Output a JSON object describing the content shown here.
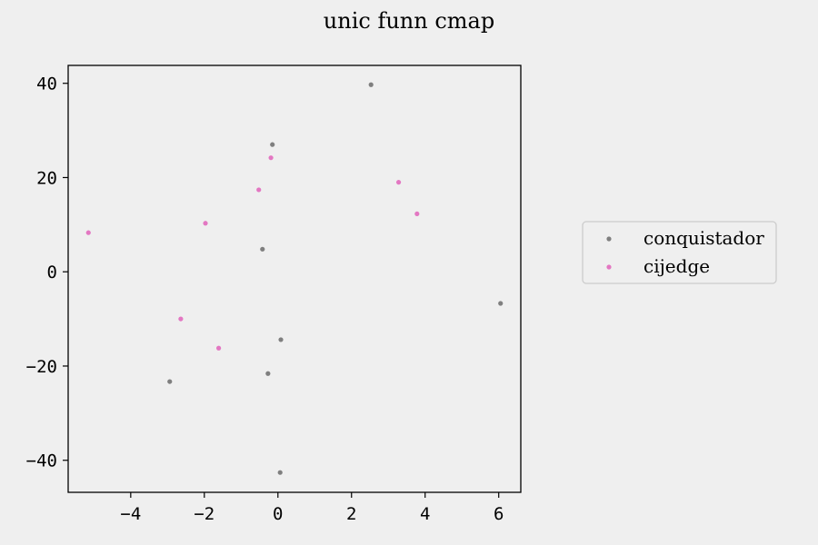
{
  "chart_data": {
    "type": "scatter",
    "title": "unic funn cmap",
    "xlabel": "",
    "ylabel": "",
    "xlim": [
      -5.7,
      6.6
    ],
    "ylim": [
      -46.8,
      43.8
    ],
    "xticks": [
      -4,
      -2,
      0,
      2,
      4,
      6
    ],
    "xtick_labels": [
      "−4",
      "−2",
      "0",
      "2",
      "4",
      "6"
    ],
    "yticks": [
      -40,
      -20,
      0,
      20,
      40
    ],
    "ytick_labels": [
      "−40",
      "−20",
      "0",
      "20",
      "40"
    ],
    "grid": false,
    "legend_position": "outside-right",
    "series": [
      {
        "name": "conquistador",
        "color": "#7f7f7f",
        "points": [
          {
            "x": 2.53,
            "y": 39.7
          },
          {
            "x": -0.15,
            "y": 27.0
          },
          {
            "x": -0.42,
            "y": 4.8
          },
          {
            "x": 6.05,
            "y": -6.7
          },
          {
            "x": 0.08,
            "y": -14.4
          },
          {
            "x": -0.27,
            "y": -21.6
          },
          {
            "x": -2.94,
            "y": -23.3
          },
          {
            "x": 0.06,
            "y": -42.6
          }
        ]
      },
      {
        "name": "cijedge",
        "color": "#e377c2",
        "points": [
          {
            "x": -0.19,
            "y": 24.2
          },
          {
            "x": 3.28,
            "y": 19.0
          },
          {
            "x": -0.52,
            "y": 17.4
          },
          {
            "x": 3.78,
            "y": 12.3
          },
          {
            "x": -1.97,
            "y": 10.3
          },
          {
            "x": -5.15,
            "y": 8.3
          },
          {
            "x": -2.64,
            "y": -10.0
          },
          {
            "x": -1.61,
            "y": -16.2
          }
        ]
      }
    ]
  }
}
